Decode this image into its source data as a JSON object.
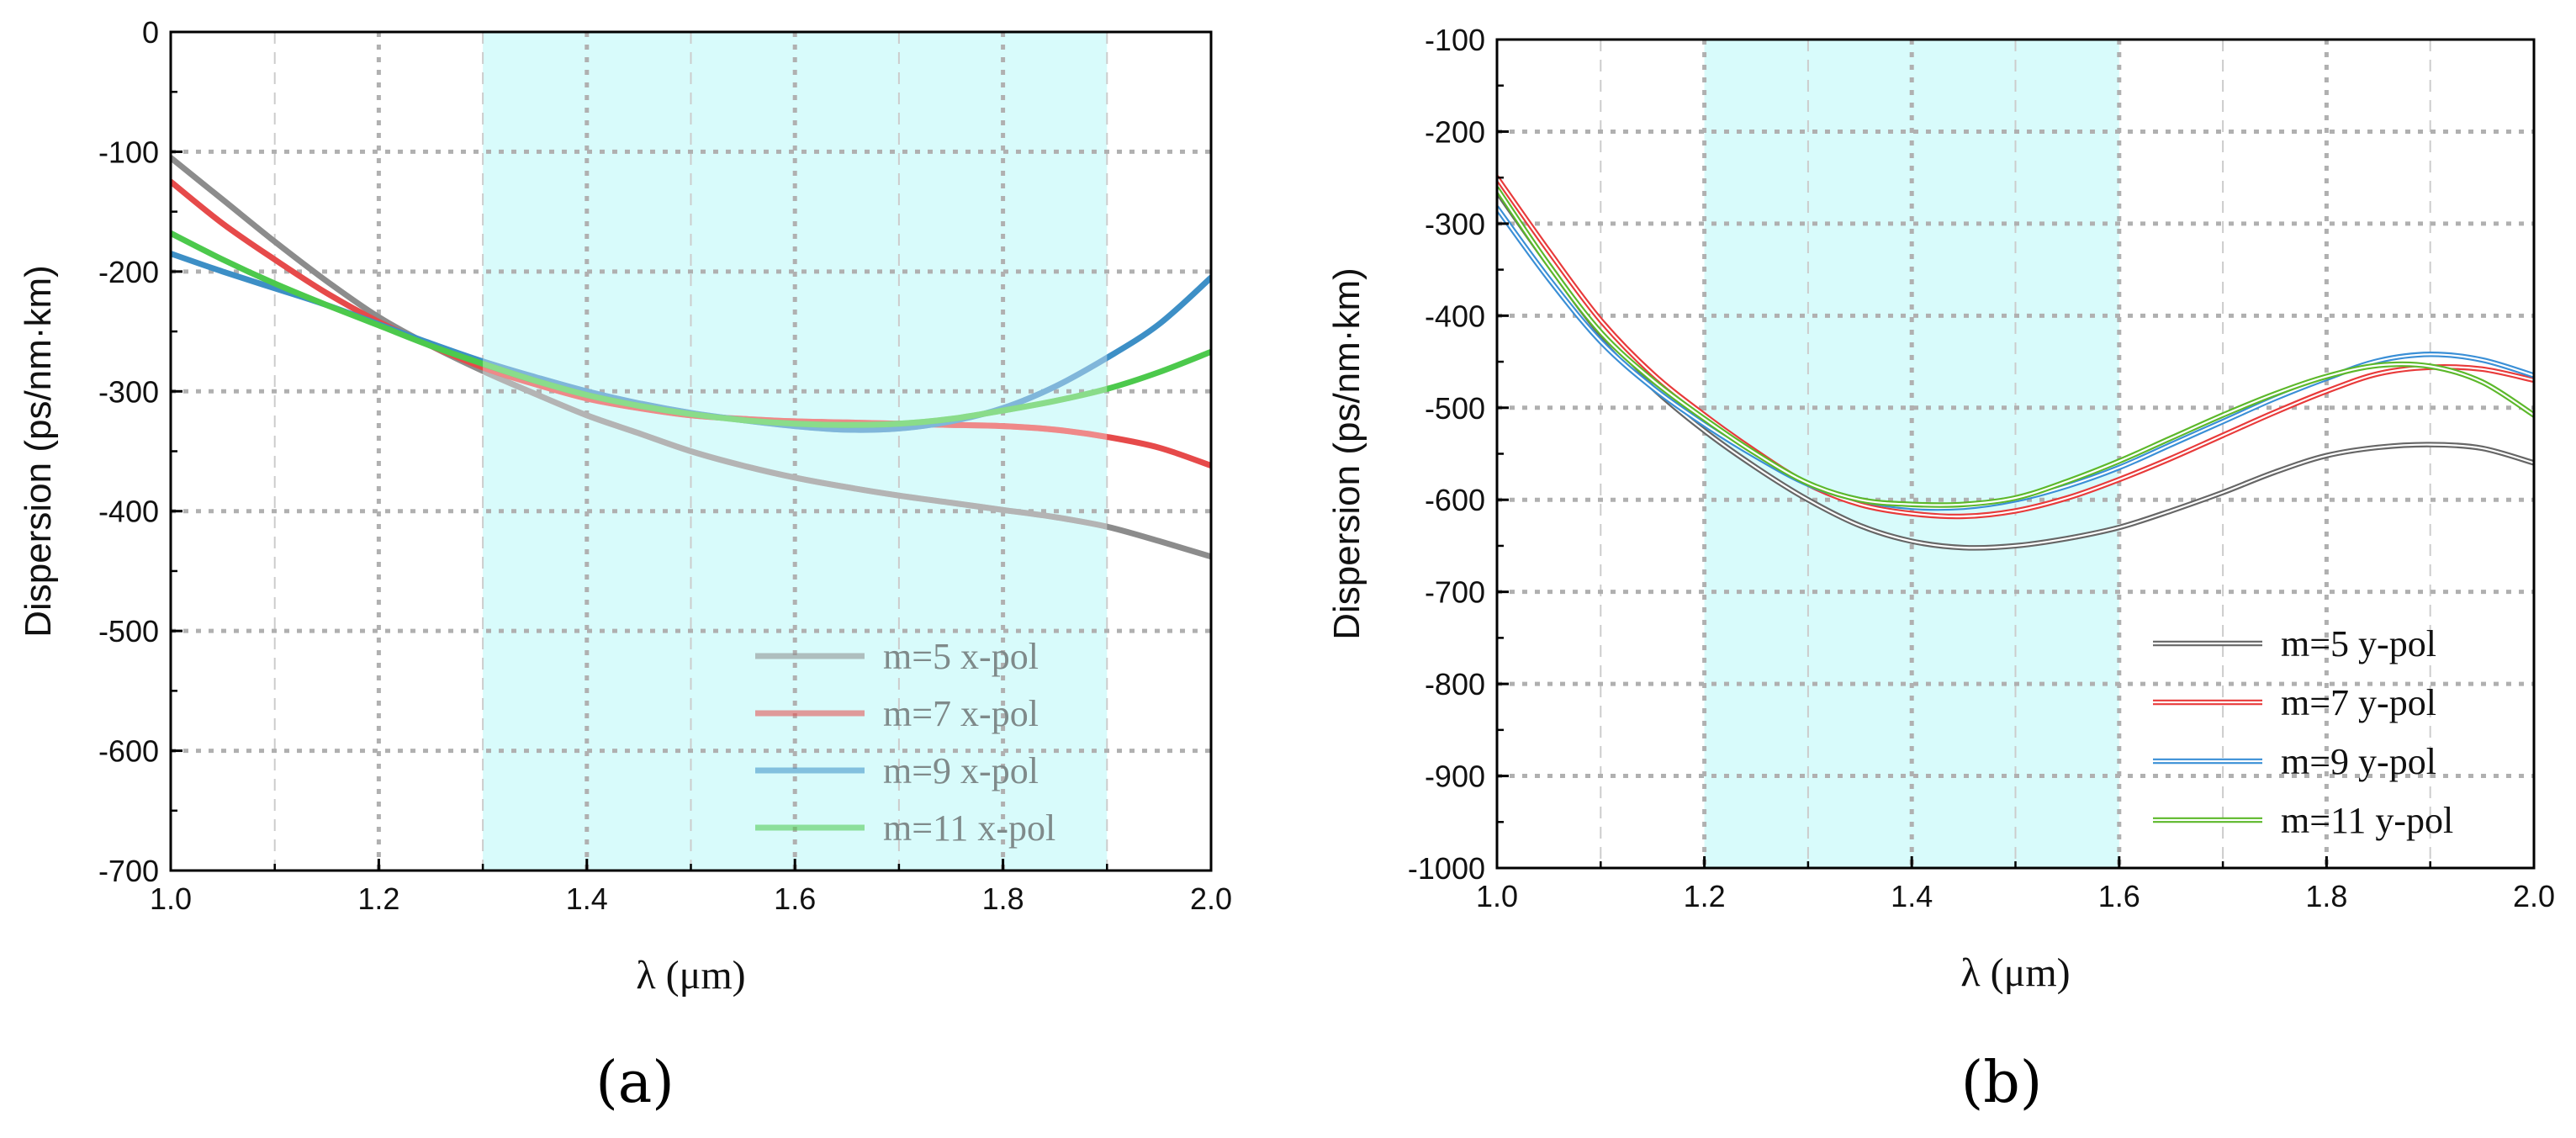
{
  "chart_data": [
    {
      "type": "line",
      "panel": "(a)",
      "xlabel": "λ (μm)",
      "ylabel": "Dispersion (ps/nm·km)",
      "xlim": [
        1.0,
        2.0
      ],
      "ylim": [
        -700,
        0
      ],
      "xticks": [
        1.0,
        1.2,
        1.4,
        1.6,
        1.8,
        2.0
      ],
      "xtick_labels": [
        "1.0",
        "1.2",
        "1.4",
        "1.6",
        "1.8",
        "2.0"
      ],
      "yticks": [
        0,
        -100,
        -200,
        -300,
        -400,
        -500,
        -600,
        -700
      ],
      "ytick_labels": [
        "0",
        "-100",
        "-200",
        "-300",
        "-400",
        "-500",
        "-600",
        "-700"
      ],
      "grid": true,
      "highlight_range": [
        1.3,
        1.9
      ],
      "highlight_color": "#d8fbfb",
      "legend_position": "bottom-right",
      "series": [
        {
          "name": "m=5 x-pol",
          "color": "#8c8c8c",
          "style": "solid",
          "x": [
            1.0,
            1.05,
            1.1,
            1.15,
            1.2,
            1.25,
            1.3,
            1.35,
            1.4,
            1.45,
            1.5,
            1.55,
            1.6,
            1.65,
            1.7,
            1.75,
            1.8,
            1.85,
            1.9,
            1.95,
            2.0
          ],
          "y": [
            -105,
            -140,
            -175,
            -208,
            -238,
            -262,
            -283,
            -302,
            -320,
            -335,
            -350,
            -362,
            -372,
            -380,
            -387,
            -393,
            -399,
            -405,
            -413,
            -425,
            -438
          ]
        },
        {
          "name": "m=7 x-pol",
          "color": "#e64a4a",
          "style": "solid",
          "x": [
            1.0,
            1.05,
            1.1,
            1.15,
            1.2,
            1.25,
            1.3,
            1.35,
            1.4,
            1.45,
            1.5,
            1.55,
            1.6,
            1.65,
            1.7,
            1.75,
            1.8,
            1.85,
            1.9,
            1.95,
            2.0
          ],
          "y": [
            -125,
            -160,
            -190,
            -218,
            -242,
            -262,
            -280,
            -294,
            -306,
            -314,
            -320,
            -323,
            -325,
            -326,
            -327,
            -328,
            -329,
            -332,
            -338,
            -347,
            -362
          ]
        },
        {
          "name": "m=9 x-pol",
          "color": "#3d8fc6",
          "style": "solid",
          "x": [
            1.0,
            1.05,
            1.1,
            1.15,
            1.2,
            1.25,
            1.3,
            1.35,
            1.4,
            1.45,
            1.5,
            1.55,
            1.6,
            1.65,
            1.7,
            1.75,
            1.8,
            1.85,
            1.9,
            1.95,
            2.0
          ],
          "y": [
            -185,
            -200,
            -214,
            -228,
            -244,
            -260,
            -275,
            -288,
            -300,
            -310,
            -318,
            -324,
            -329,
            -332,
            -331,
            -325,
            -314,
            -296,
            -272,
            -244,
            -205
          ]
        },
        {
          "name": "m=11 x-pol",
          "color": "#4cc94c",
          "style": "solid",
          "x": [
            1.0,
            1.05,
            1.1,
            1.15,
            1.2,
            1.25,
            1.3,
            1.35,
            1.4,
            1.45,
            1.5,
            1.55,
            1.6,
            1.65,
            1.7,
            1.75,
            1.8,
            1.85,
            1.9,
            1.95,
            2.0
          ],
          "y": [
            -168,
            -190,
            -210,
            -228,
            -245,
            -262,
            -277,
            -291,
            -303,
            -312,
            -319,
            -324,
            -327,
            -328,
            -327,
            -323,
            -316,
            -308,
            -298,
            -284,
            -267
          ]
        }
      ]
    },
    {
      "type": "line",
      "panel": "(b)",
      "xlabel": "λ (μm)",
      "ylabel": "Dispersion (ps/nm·km)",
      "xlim": [
        1.0,
        2.0
      ],
      "ylim": [
        -1000,
        -100
      ],
      "xticks": [
        1.0,
        1.2,
        1.4,
        1.6,
        1.8,
        2.0
      ],
      "xtick_labels": [
        "1.0",
        "1.2",
        "1.4",
        "1.6",
        "1.8",
        "2.0"
      ],
      "yticks": [
        -100,
        -200,
        -300,
        -400,
        -500,
        -600,
        -700,
        -800,
        -900,
        -1000
      ],
      "ytick_labels": [
        "-100",
        "-200",
        "-300",
        "-400",
        "-500",
        "-600",
        "-700",
        "-800",
        "-900",
        "-1000"
      ],
      "grid": true,
      "highlight_range": [
        1.2,
        1.6
      ],
      "highlight_color": "#d8fbfb",
      "legend_position": "bottom-right",
      "series": [
        {
          "name": "m=5 y-pol",
          "color": "#666666",
          "style": "double",
          "x": [
            1.0,
            1.05,
            1.1,
            1.15,
            1.2,
            1.25,
            1.3,
            1.35,
            1.4,
            1.45,
            1.5,
            1.55,
            1.6,
            1.65,
            1.7,
            1.75,
            1.8,
            1.85,
            1.9,
            1.95,
            2.0
          ],
          "y": [
            -265,
            -345,
            -420,
            -478,
            -525,
            -565,
            -600,
            -628,
            -645,
            -652,
            -650,
            -642,
            -630,
            -612,
            -592,
            -570,
            -552,
            -543,
            -540,
            -544,
            -560
          ]
        },
        {
          "name": "m=7 y-pol",
          "color": "#e83a3a",
          "style": "double",
          "x": [
            1.0,
            1.05,
            1.1,
            1.15,
            1.2,
            1.25,
            1.3,
            1.35,
            1.4,
            1.45,
            1.5,
            1.55,
            1.6,
            1.65,
            1.7,
            1.75,
            1.8,
            1.85,
            1.9,
            1.95,
            2.0
          ],
          "y": [
            -250,
            -330,
            -405,
            -463,
            -508,
            -548,
            -583,
            -605,
            -615,
            -618,
            -612,
            -598,
            -578,
            -555,
            -530,
            -505,
            -482,
            -463,
            -456,
            -458,
            -470
          ]
        },
        {
          "name": "m=9 y-pol",
          "color": "#3a8fd6",
          "style": "double",
          "x": [
            1.0,
            1.05,
            1.1,
            1.15,
            1.2,
            1.25,
            1.3,
            1.35,
            1.4,
            1.45,
            1.5,
            1.55,
            1.6,
            1.65,
            1.7,
            1.75,
            1.8,
            1.85,
            1.9,
            1.95,
            2.0
          ],
          "y": [
            -283,
            -360,
            -428,
            -478,
            -518,
            -553,
            -583,
            -600,
            -608,
            -608,
            -600,
            -585,
            -565,
            -540,
            -515,
            -490,
            -468,
            -449,
            -442,
            -448,
            -465
          ]
        },
        {
          "name": "m=11 y-pol",
          "color": "#5cb82a",
          "style": "double",
          "x": [
            1.0,
            1.05,
            1.1,
            1.15,
            1.2,
            1.25,
            1.3,
            1.35,
            1.4,
            1.45,
            1.5,
            1.55,
            1.6,
            1.65,
            1.7,
            1.75,
            1.8,
            1.85,
            1.9,
            1.95,
            2.0
          ],
          "y": [
            -262,
            -345,
            -418,
            -470,
            -512,
            -550,
            -582,
            -600,
            -605,
            -605,
            -598,
            -580,
            -558,
            -533,
            -508,
            -485,
            -466,
            -454,
            -455,
            -472,
            -508
          ]
        }
      ]
    }
  ]
}
